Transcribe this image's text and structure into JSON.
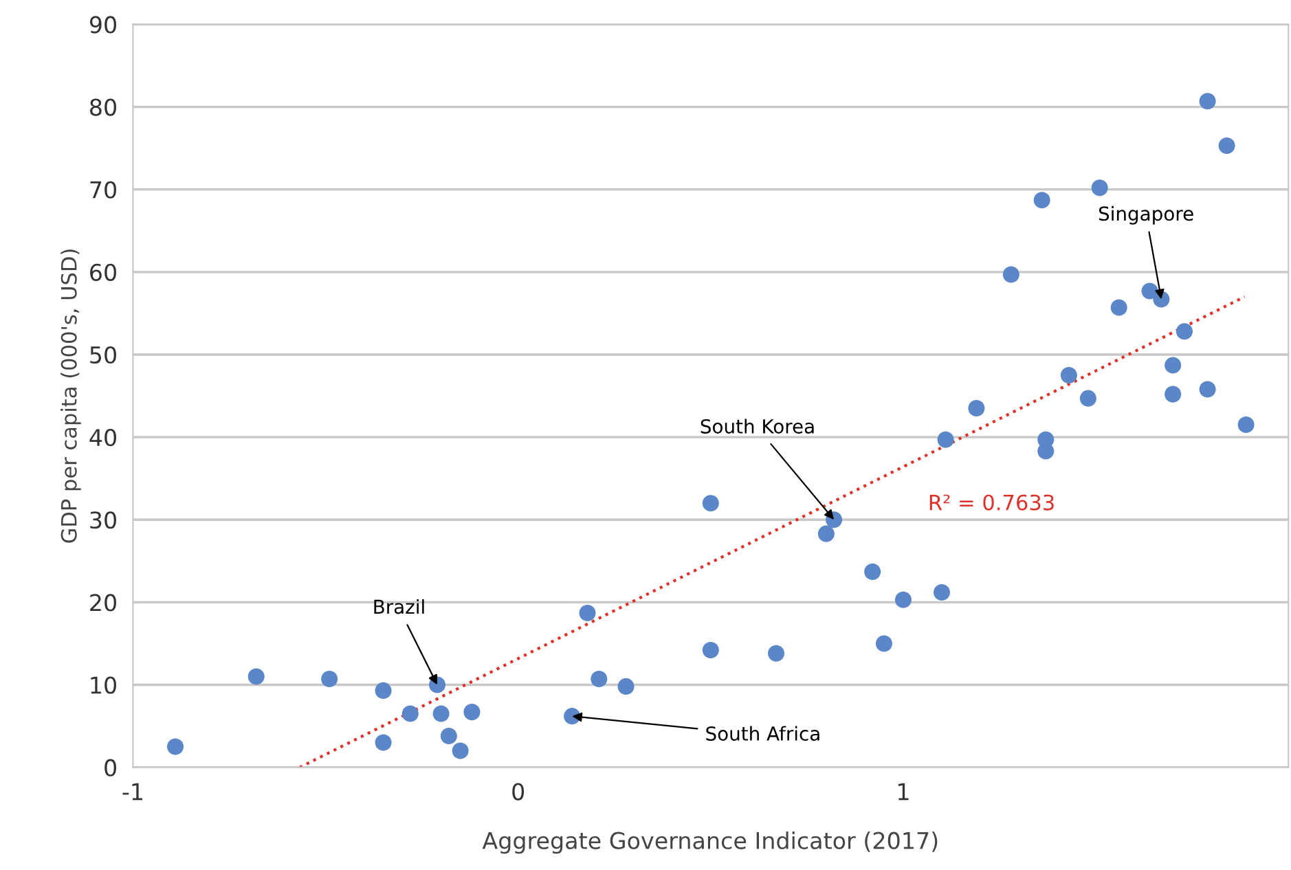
{
  "chart_data": {
    "type": "scatter",
    "xlabel": "Aggregate Governance Indicator (2017)",
    "ylabel": "GDP per capita (000's, USD)",
    "xlim": [
      -1,
      2
    ],
    "xticks": [
      -1,
      0,
      1
    ],
    "ylim": [
      0,
      90
    ],
    "yticks": [
      0,
      10,
      20,
      30,
      40,
      50,
      60,
      70,
      80,
      90
    ],
    "grid": "y",
    "legend": false,
    "marker": "circle",
    "series": [
      {
        "color": "#5b87c9",
        "x": [
          -0.89,
          -0.68,
          -0.49,
          -0.35,
          -0.35,
          -0.28,
          -0.21,
          -0.2,
          -0.18,
          -0.15,
          -0.12,
          0.14,
          0.18,
          0.21,
          0.28,
          0.5,
          0.5,
          0.67,
          0.8,
          0.82,
          0.92,
          0.95,
          1.0,
          1.1,
          1.11,
          1.19,
          1.28,
          1.36,
          1.37,
          1.37,
          1.43,
          1.48,
          1.51,
          1.56,
          1.64,
          1.67,
          1.73,
          1.7,
          1.7,
          1.79,
          1.79,
          1.84,
          1.89
        ],
        "values": [
          2.5,
          11.0,
          10.7,
          9.3,
          3.0,
          6.5,
          10.0,
          6.5,
          3.8,
          2.0,
          6.7,
          6.2,
          18.7,
          10.7,
          9.8,
          14.2,
          32.0,
          13.8,
          28.3,
          30.0,
          23.7,
          15.0,
          20.3,
          21.2,
          39.7,
          43.5,
          59.7,
          68.7,
          39.7,
          38.3,
          47.5,
          44.7,
          70.2,
          55.7,
          57.7,
          56.7,
          52.8,
          48.7,
          45.2,
          80.7,
          45.8,
          75.3,
          41.5
        ]
      },
      {
        "type": "line",
        "color": "#e0302a",
        "line_style": "dotted",
        "marker": "none",
        "x": [
          -0.567,
          1.886
        ],
        "values": [
          0,
          57
        ]
      }
    ],
    "annotations": [
      {
        "text": "Brazil",
        "x": -0.21,
        "y": 10.0
      },
      {
        "text": "South Africa",
        "x": 0.14,
        "y": 6.2
      },
      {
        "text": "South Korea",
        "x": 0.82,
        "y": 30.0
      },
      {
        "text": "Singapore",
        "x": 1.67,
        "y": 56.7
      },
      "R² = 0.7633"
    ]
  }
}
